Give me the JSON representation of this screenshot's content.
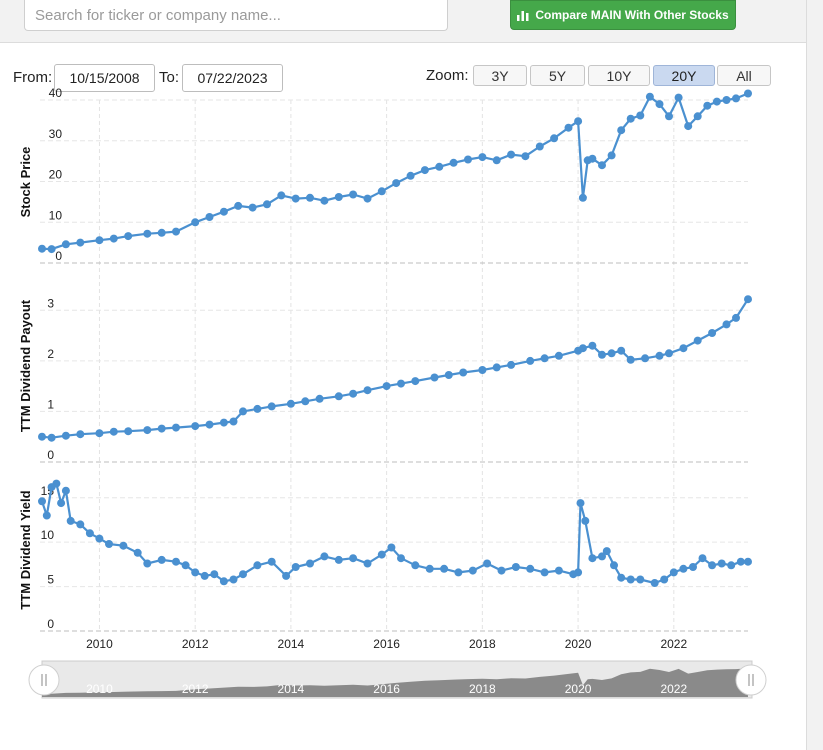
{
  "search": {
    "placeholder": "Search for ticker or company name..."
  },
  "compare_button": {
    "label": "Compare MAIN With Other Stocks",
    "icon": "bar-chart-icon",
    "color": "#45a84a"
  },
  "range": {
    "from_label": "From:",
    "from_value": "10/15/2008",
    "to_label": "To:",
    "to_value": "07/22/2023"
  },
  "zoom": {
    "label": "Zoom:",
    "options": [
      "3Y",
      "5Y",
      "10Y",
      "20Y",
      "All"
    ],
    "selected": "20Y"
  },
  "navigator": {
    "labels": [
      "2010",
      "2012",
      "2014",
      "2016",
      "2018",
      "2020",
      "2022"
    ]
  },
  "colors": {
    "series": "#4a90d0",
    "selected_zoom": "#cad9f0"
  },
  "chart_data": [
    {
      "type": "line",
      "ylabel": "Stock Price",
      "ylim": [
        0,
        40
      ],
      "yticks": [
        0,
        10,
        20,
        30,
        40
      ],
      "x_range": [
        2008.8,
        2023.55
      ],
      "xticks": [
        "2010",
        "2012",
        "2014",
        "2016",
        "2018",
        "2020",
        "2022"
      ],
      "grid": true,
      "series": [
        {
          "x": [
            2008.8,
            2009.0,
            2009.3,
            2009.6,
            2010.0,
            2010.3,
            2010.6,
            2011.0,
            2011.3,
            2011.6,
            2012.0,
            2012.3,
            2012.6,
            2012.9,
            2013.2,
            2013.5,
            2013.8,
            2014.1,
            2014.4,
            2014.7,
            2015.0,
            2015.3,
            2015.6,
            2015.9,
            2016.2,
            2016.5,
            2016.8,
            2017.1,
            2017.4,
            2017.7,
            2018.0,
            2018.3,
            2018.6,
            2018.9,
            2019.2,
            2019.5,
            2019.8,
            2020.0,
            2020.1,
            2020.2,
            2020.3,
            2020.5,
            2020.7,
            2020.9,
            2021.1,
            2021.3,
            2021.5,
            2021.7,
            2021.9,
            2022.1,
            2022.3,
            2022.5,
            2022.7,
            2022.9,
            2023.1,
            2023.3,
            2023.55
          ],
          "y": [
            3.5,
            3.4,
            4.6,
            5.0,
            5.6,
            6.0,
            6.6,
            7.2,
            7.4,
            7.7,
            10.0,
            11.3,
            12.6,
            14.0,
            13.6,
            14.4,
            16.6,
            15.8,
            16.0,
            15.3,
            16.2,
            16.8,
            15.8,
            17.6,
            19.6,
            21.4,
            22.8,
            23.6,
            24.6,
            25.4,
            26.0,
            25.2,
            26.6,
            26.2,
            28.6,
            30.6,
            33.2,
            34.8,
            16.0,
            25.2,
            25.6,
            24.0,
            26.4,
            32.6,
            35.4,
            36.2,
            40.8,
            39.0,
            36.0,
            40.6,
            33.6,
            36.0,
            38.6,
            39.6,
            40.0,
            40.4,
            41.6
          ]
        }
      ]
    },
    {
      "type": "line",
      "ylabel": "TTM Dividend Payout",
      "ylim": [
        0,
        3.5
      ],
      "yticks": [
        0,
        1,
        2,
        3
      ],
      "x_range": [
        2008.8,
        2023.55
      ],
      "xticks": [
        "2010",
        "2012",
        "2014",
        "2016",
        "2018",
        "2020",
        "2022"
      ],
      "grid": true,
      "series": [
        {
          "x": [
            2008.8,
            2009.0,
            2009.3,
            2009.6,
            2010.0,
            2010.3,
            2010.6,
            2011.0,
            2011.3,
            2011.6,
            2012.0,
            2012.3,
            2012.6,
            2012.8,
            2013.0,
            2013.3,
            2013.6,
            2014.0,
            2014.3,
            2014.6,
            2015.0,
            2015.3,
            2015.6,
            2016.0,
            2016.3,
            2016.6,
            2017.0,
            2017.3,
            2017.6,
            2018.0,
            2018.3,
            2018.6,
            2019.0,
            2019.3,
            2019.6,
            2020.0,
            2020.1,
            2020.3,
            2020.5,
            2020.7,
            2020.9,
            2021.1,
            2021.4,
            2021.7,
            2021.9,
            2022.2,
            2022.5,
            2022.8,
            2023.1,
            2023.3,
            2023.55
          ],
          "y": [
            0.5,
            0.48,
            0.52,
            0.55,
            0.57,
            0.6,
            0.61,
            0.63,
            0.66,
            0.68,
            0.71,
            0.74,
            0.78,
            0.8,
            1.0,
            1.05,
            1.1,
            1.15,
            1.2,
            1.25,
            1.3,
            1.35,
            1.42,
            1.5,
            1.55,
            1.6,
            1.67,
            1.72,
            1.77,
            1.82,
            1.87,
            1.92,
            2.0,
            2.05,
            2.1,
            2.2,
            2.25,
            2.3,
            2.12,
            2.15,
            2.2,
            2.02,
            2.05,
            2.1,
            2.15,
            2.25,
            2.4,
            2.55,
            2.72,
            2.85,
            3.22
          ]
        }
      ]
    },
    {
      "type": "line",
      "ylabel": "TTM Dividend Yield",
      "ylim": [
        0,
        17
      ],
      "yticks": [
        0,
        5,
        10,
        15
      ],
      "x_range": [
        2008.8,
        2023.55
      ],
      "xticks": [
        "2010",
        "2012",
        "2014",
        "2016",
        "2018",
        "2020",
        "2022"
      ],
      "grid": true,
      "series": [
        {
          "x": [
            2008.8,
            2008.9,
            2009.0,
            2009.1,
            2009.2,
            2009.3,
            2009.4,
            2009.6,
            2009.8,
            2010.0,
            2010.2,
            2010.5,
            2010.8,
            2011.0,
            2011.3,
            2011.6,
            2011.8,
            2012.0,
            2012.2,
            2012.4,
            2012.6,
            2012.8,
            2013.0,
            2013.3,
            2013.6,
            2013.9,
            2014.1,
            2014.4,
            2014.7,
            2015.0,
            2015.3,
            2015.6,
            2015.9,
            2016.1,
            2016.3,
            2016.6,
            2016.9,
            2017.2,
            2017.5,
            2017.8,
            2018.1,
            2018.4,
            2018.7,
            2019.0,
            2019.3,
            2019.6,
            2019.9,
            2020.0,
            2020.05,
            2020.15,
            2020.3,
            2020.5,
            2020.6,
            2020.75,
            2020.9,
            2021.1,
            2021.3,
            2021.6,
            2021.8,
            2022.0,
            2022.2,
            2022.4,
            2022.6,
            2022.8,
            2023.0,
            2023.2,
            2023.4,
            2023.55
          ],
          "y": [
            14.6,
            13.0,
            16.2,
            16.6,
            14.4,
            15.8,
            12.4,
            12.0,
            11.0,
            10.4,
            9.8,
            9.6,
            8.8,
            7.6,
            8.0,
            7.8,
            7.4,
            6.6,
            6.2,
            6.4,
            5.6,
            5.8,
            6.4,
            7.4,
            7.8,
            6.2,
            7.2,
            7.6,
            8.4,
            8.0,
            8.2,
            7.6,
            8.6,
            9.4,
            8.2,
            7.4,
            7.0,
            7.0,
            6.6,
            6.8,
            7.6,
            6.8,
            7.2,
            7.0,
            6.6,
            6.8,
            6.4,
            6.6,
            14.4,
            12.4,
            8.2,
            8.4,
            9.0,
            7.4,
            6.0,
            5.8,
            5.8,
            5.4,
            5.8,
            6.6,
            7.0,
            7.2,
            8.2,
            7.4,
            7.6,
            7.4,
            7.8,
            7.8
          ]
        }
      ]
    }
  ]
}
